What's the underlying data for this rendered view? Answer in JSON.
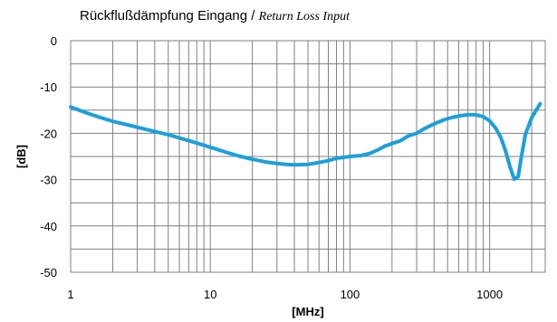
{
  "chart_data": {
    "type": "line",
    "title_de": "Rückflußdämpfung Eingang",
    "title_sep": " / ",
    "title_en": "Return Loss Input",
    "xlabel": "[MHz]",
    "ylabel": "[dB]",
    "x_scale": "log",
    "xlim": [
      1,
      2500
    ],
    "ylim": [
      -50,
      0
    ],
    "x_ticks": [
      {
        "value": 1,
        "label": "1"
      },
      {
        "value": 10,
        "label": "10"
      },
      {
        "value": 100,
        "label": "100"
      },
      {
        "value": 1000,
        "label": "1000"
      }
    ],
    "y_ticks": [
      {
        "value": 0,
        "label": "0"
      },
      {
        "value": -10,
        "label": "-10"
      },
      {
        "value": -20,
        "label": "-20"
      },
      {
        "value": -30,
        "label": "-30"
      },
      {
        "value": -40,
        "label": "-40"
      },
      {
        "value": -50,
        "label": "-50"
      }
    ],
    "grid": true,
    "series": [
      {
        "color": "#1ca0dc",
        "points": [
          [
            1,
            -14.3
          ],
          [
            1.3,
            -15.6
          ],
          [
            1.6,
            -16.5
          ],
          [
            2,
            -17.4
          ],
          [
            2.5,
            -18.1
          ],
          [
            3,
            -18.7
          ],
          [
            4,
            -19.6
          ],
          [
            5,
            -20.3
          ],
          [
            6,
            -21.0
          ],
          [
            8,
            -22.1
          ],
          [
            10,
            -23.0
          ],
          [
            13,
            -24.1
          ],
          [
            16,
            -24.9
          ],
          [
            20,
            -25.6
          ],
          [
            25,
            -26.2
          ],
          [
            30,
            -26.5
          ],
          [
            35,
            -26.7
          ],
          [
            40,
            -26.8
          ],
          [
            50,
            -26.7
          ],
          [
            60,
            -26.3
          ],
          [
            70,
            -25.9
          ],
          [
            80,
            -25.4
          ],
          [
            90,
            -25.2
          ],
          [
            100,
            -25.0
          ],
          [
            120,
            -24.8
          ],
          [
            140,
            -24.3
          ],
          [
            160,
            -23.5
          ],
          [
            180,
            -22.7
          ],
          [
            200,
            -22.2
          ],
          [
            230,
            -21.6
          ],
          [
            260,
            -20.6
          ],
          [
            300,
            -20.0
          ],
          [
            340,
            -19.0
          ],
          [
            380,
            -18.3
          ],
          [
            420,
            -17.7
          ],
          [
            480,
            -17.0
          ],
          [
            550,
            -16.5
          ],
          [
            620,
            -16.2
          ],
          [
            700,
            -16.0
          ],
          [
            800,
            -16.0
          ],
          [
            900,
            -16.4
          ],
          [
            1000,
            -17.3
          ],
          [
            1100,
            -18.8
          ],
          [
            1200,
            -20.8
          ],
          [
            1300,
            -23.8
          ],
          [
            1400,
            -27.3
          ],
          [
            1500,
            -29.9
          ],
          [
            1600,
            -29.4
          ],
          [
            1700,
            -24.5
          ],
          [
            1800,
            -20.3
          ],
          [
            2000,
            -16.6
          ],
          [
            2300,
            -13.6
          ]
        ]
      }
    ]
  }
}
